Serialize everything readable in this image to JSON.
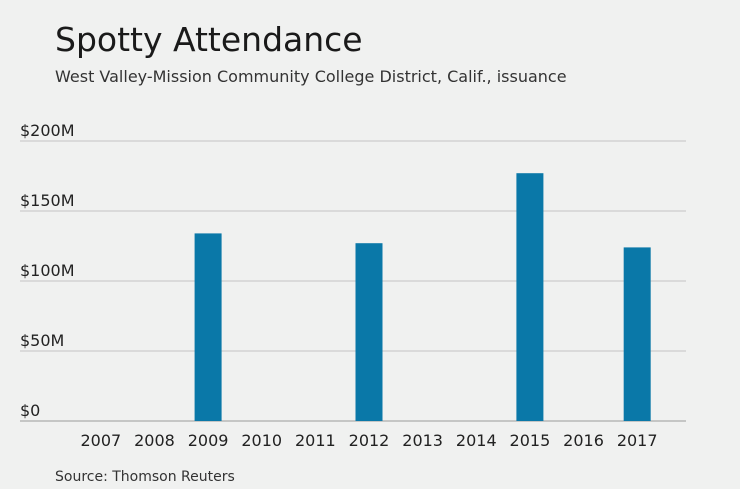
{
  "chart_data": {
    "type": "bar",
    "title": "Spotty Attendance",
    "subtitle": "West Valley-Mission Community College District, Calif., issuance",
    "source": "Source: Thomson Reuters",
    "categories": [
      "2007",
      "2008",
      "2009",
      "2010",
      "2011",
      "2012",
      "2013",
      "2014",
      "2015",
      "2016",
      "2017"
    ],
    "values": [
      0,
      0,
      134,
      0,
      0,
      127,
      0,
      0,
      177,
      0,
      124
    ],
    "ylim": [
      0,
      200
    ],
    "yticks": [
      0,
      50,
      100,
      150,
      200
    ],
    "ytick_labels": [
      "$0",
      "$50M",
      "$100M",
      "$150M",
      "$200M"
    ],
    "grid": true,
    "bar_color": "#0a78a8"
  }
}
